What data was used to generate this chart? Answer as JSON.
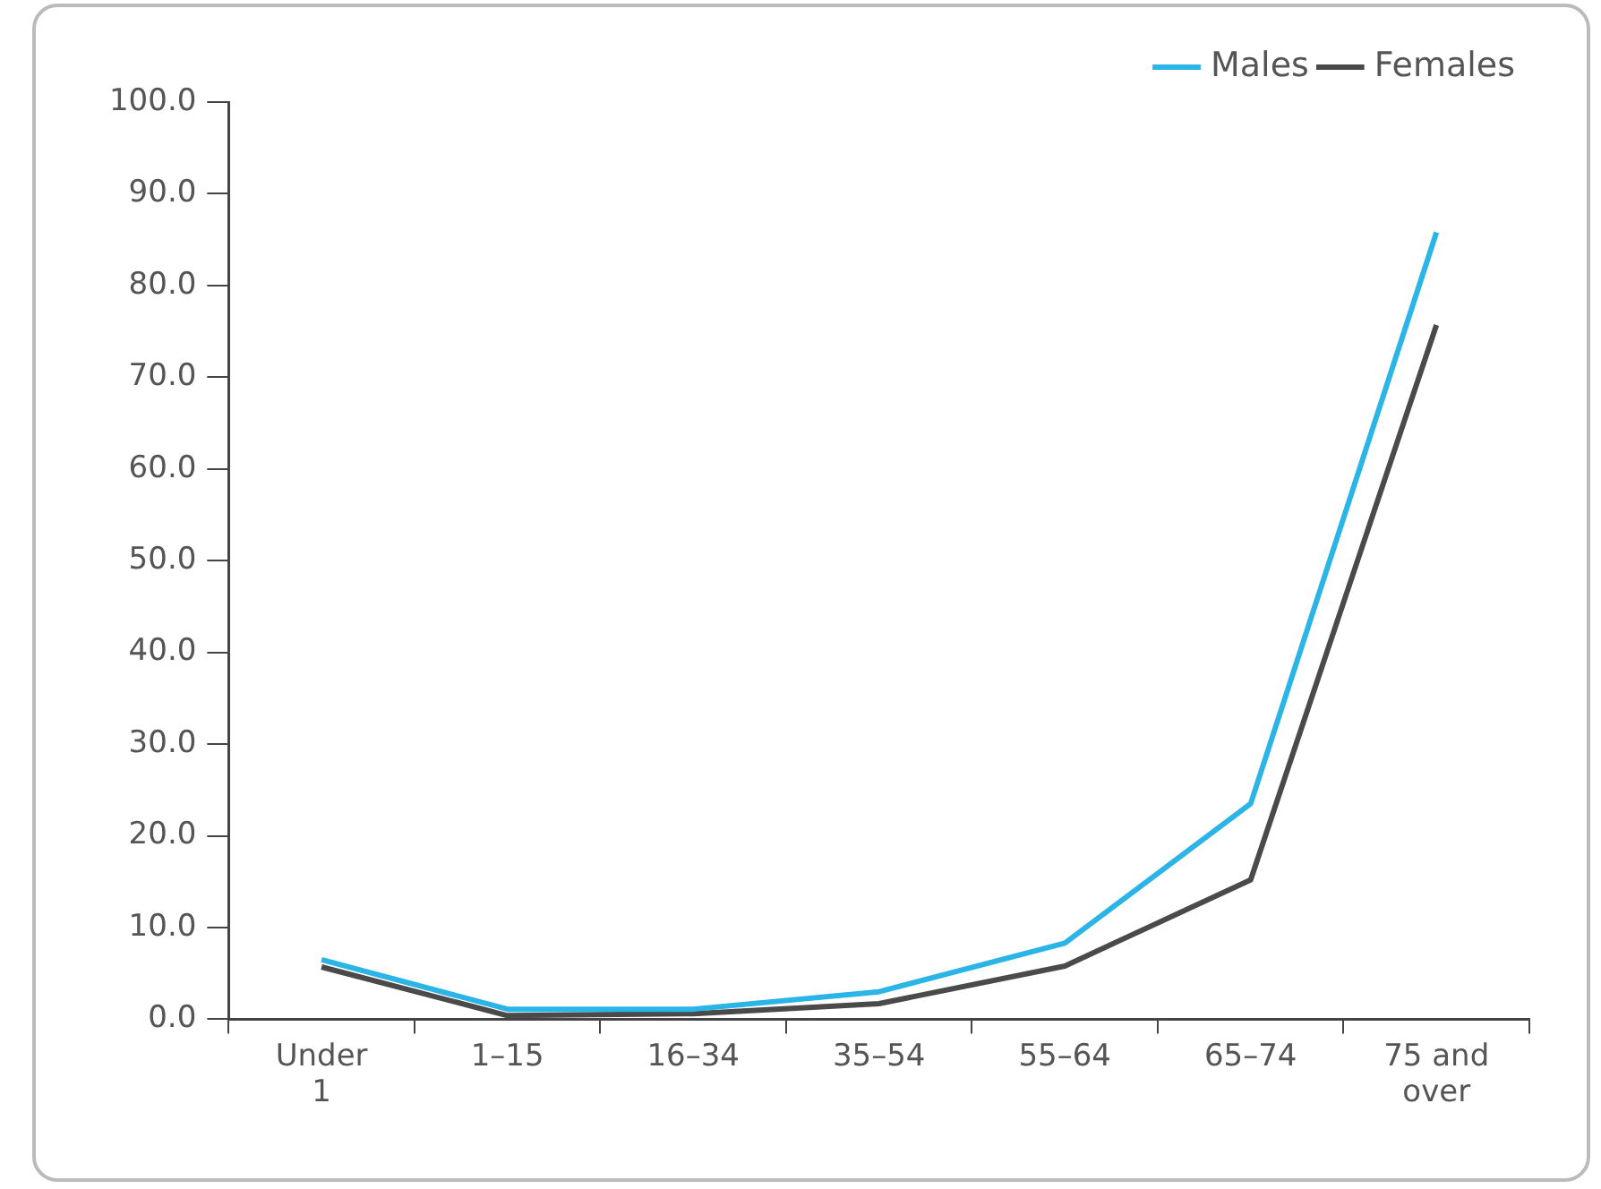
{
  "chart_data": {
    "type": "line",
    "categories": [
      "Under 1",
      "1–15",
      "16–34",
      "35–54",
      "55–64",
      "65–74",
      "75 and over"
    ],
    "series": [
      {
        "name": "Males",
        "color": "#2bb4e6",
        "values": [
          6.5,
          1.1,
          1.1,
          3.0,
          8.3,
          23.5,
          85.8
        ]
      },
      {
        "name": "Females",
        "color": "#4a4a4a",
        "values": [
          5.7,
          0.4,
          0.6,
          1.7,
          5.8,
          15.2,
          75.7
        ]
      }
    ],
    "ylim": [
      0,
      100
    ],
    "yticks": [
      {
        "value": 0,
        "label": "0.0"
      },
      {
        "value": 10,
        "label": "10.0"
      },
      {
        "value": 20,
        "label": "20.0"
      },
      {
        "value": 30,
        "label": "30.0"
      },
      {
        "value": 40,
        "label": "40.0"
      },
      {
        "value": 50,
        "label": "50.0"
      },
      {
        "value": 60,
        "label": "60.0"
      },
      {
        "value": 70,
        "label": "70.0"
      },
      {
        "value": 80,
        "label": "80.0"
      },
      {
        "value": 90,
        "label": "90.0"
      },
      {
        "value": 100,
        "label": "100.0"
      }
    ],
    "grid": false,
    "legend": "top right",
    "marker": "none",
    "line_style": "solid"
  }
}
